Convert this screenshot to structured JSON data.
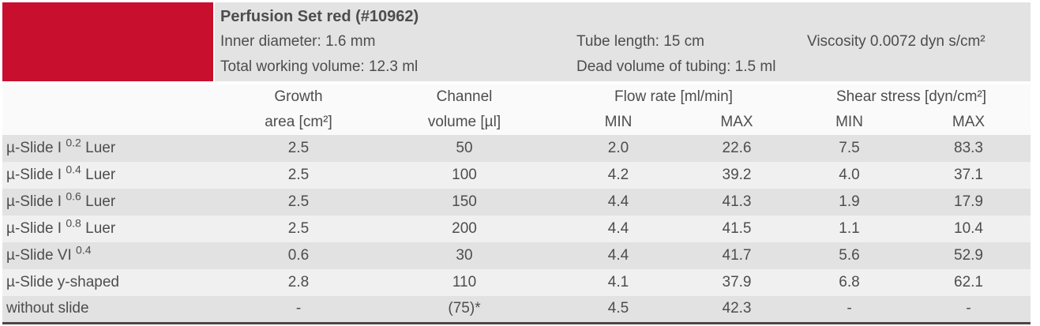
{
  "colors": {
    "brand_red": "#c8102e",
    "row_odd": "#e2e2e2",
    "row_even": "#f0f0f0",
    "info_bg": "#e3e3e3",
    "text": "#4d4d4d"
  },
  "info": {
    "title": "Perfusion Set red (#10962)",
    "inner_diameter": "Inner diameter: 1.6 mm",
    "tube_length": "Tube length: 15 cm",
    "viscosity": "Viscosity 0.0072 dyn s/cm²",
    "total_working_volume": "Total working volume: 12.3 ml",
    "dead_volume": "Dead volume of tubing: 1.5 ml"
  },
  "table": {
    "headers": {
      "growth_line1": "Growth",
      "growth_line2": "area [cm²]",
      "channel_line1": "Channel",
      "channel_line2": "volume [µl]",
      "flow_group": "Flow rate [ml/min]",
      "shear_group": "Shear stress [dyn/cm²]",
      "flow_min": "MIN",
      "flow_max": "MAX",
      "shear_min": "MIN",
      "shear_max": "MAX"
    },
    "rows": [
      {
        "name_parts": [
          {
            "t": "µ-Slide I "
          },
          {
            "t": "0.2",
            "sup": true
          },
          {
            "t": " Luer"
          }
        ],
        "values": [
          "2.5",
          "50",
          "2.0",
          "22.6",
          "7.5",
          "83.3"
        ]
      },
      {
        "name_parts": [
          {
            "t": "µ-Slide I "
          },
          {
            "t": "0.4",
            "sup": true
          },
          {
            "t": " Luer"
          }
        ],
        "values": [
          "2.5",
          "100",
          "4.2",
          "39.2",
          "4.0",
          "37.1"
        ]
      },
      {
        "name_parts": [
          {
            "t": "µ-Slide I "
          },
          {
            "t": "0.6",
            "sup": true
          },
          {
            "t": " Luer"
          }
        ],
        "values": [
          "2.5",
          "150",
          "4.4",
          "41.3",
          "1.9",
          "17.9"
        ]
      },
      {
        "name_parts": [
          {
            "t": "µ-Slide I "
          },
          {
            "t": "0.8",
            "sup": true
          },
          {
            "t": " Luer"
          }
        ],
        "values": [
          "2.5",
          "200",
          "4.4",
          "41.5",
          "1.1",
          "10.4"
        ]
      },
      {
        "name_parts": [
          {
            "t": "µ-Slide VI "
          },
          {
            "t": "0.4",
            "sup": true
          }
        ],
        "values": [
          "0.6",
          "30",
          "4.4",
          "41.7",
          "5.6",
          "52.9"
        ]
      },
      {
        "name_parts": [
          {
            "t": "µ-Slide y-shaped"
          }
        ],
        "values": [
          "2.8",
          "110",
          "4.1",
          "37.9",
          "6.8",
          "62.1"
        ]
      },
      {
        "name_parts": [
          {
            "t": "without slide"
          }
        ],
        "values": [
          "-",
          "(75)*",
          "4.5",
          "42.3",
          "-",
          "-"
        ]
      }
    ]
  }
}
